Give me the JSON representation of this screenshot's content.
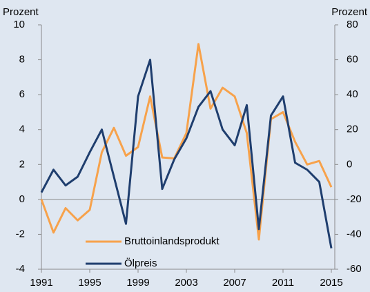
{
  "chart_data": {
    "type": "line",
    "y_label": "Prozent",
    "y2_label": "Prozent",
    "x": [
      1991,
      1992,
      1993,
      1994,
      1995,
      1996,
      1997,
      1998,
      1999,
      2000,
      2001,
      2002,
      2003,
      2004,
      2005,
      2006,
      2007,
      2008,
      2009,
      2010,
      2011,
      2012,
      2013,
      2014,
      2015
    ],
    "series": [
      {
        "name": "Bruttoinlandsprodukt",
        "color": "#f7a24b",
        "values": [
          0,
          -1.9,
          -0.5,
          -1.2,
          -0.6,
          2.7,
          4.1,
          2.5,
          3.0,
          5.9,
          2.4,
          2.35,
          3.8,
          8.9,
          5.2,
          6.4,
          5.9,
          3.8,
          -2.3,
          4.6,
          5.0,
          3.3,
          2.0,
          2.2,
          0.7
        ]
      },
      {
        "name": "Ölpreis",
        "color": "#1f3e6e",
        "axis": "y2",
        "values": [
          -16,
          -3,
          -12,
          -7,
          7,
          20,
          -7,
          -34,
          39,
          60,
          -14,
          3,
          15,
          33,
          42,
          20,
          11,
          34,
          -37,
          28,
          39,
          1,
          -3,
          -10,
          -48
        ]
      }
    ],
    "xlim": [
      1991,
      2015
    ],
    "xticks": [
      1991,
      1995,
      1999,
      2003,
      2007,
      2011,
      2015
    ],
    "ylim": [
      -4,
      10
    ],
    "yticks": [
      -4,
      -2,
      0,
      2,
      4,
      6,
      8,
      10
    ],
    "y2lim": [
      -60,
      80
    ],
    "y2ticks": [
      -60,
      -40,
      -20,
      0,
      20,
      40,
      60,
      80
    ]
  }
}
